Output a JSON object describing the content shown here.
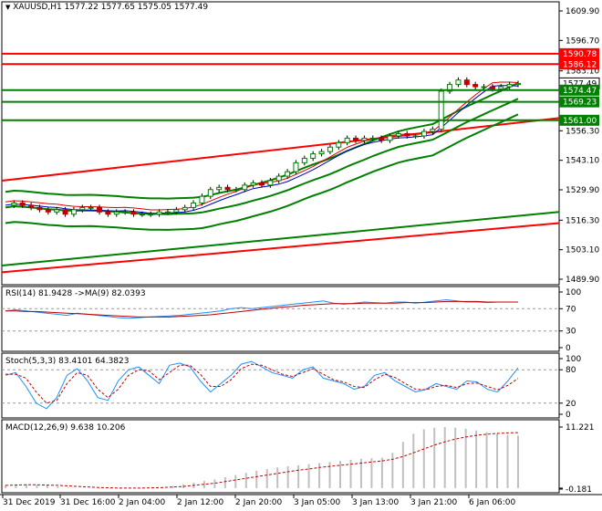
{
  "symbol": "XAUUSD,H1",
  "ohlc": "1577.22 1577.65 1575.05 1577.49",
  "colors": {
    "bull": "#008000",
    "bear": "#c00000",
    "ma_red": "#e00000",
    "ma_blue": "#0000c0",
    "green_band": "#008000",
    "level_red": "#ff0000",
    "level_green": "#008000",
    "rsi_line": "#1e90ff",
    "rsi_ma": "#c00000",
    "stoch_main": "#1e90ff",
    "stoch_signal": "#c00000",
    "macd_hist": "#c0c0c0",
    "macd_signal": "#c00000"
  },
  "chart_data": [
    {
      "type": "candlestick",
      "title": "XAUUSD,H1",
      "ohlc_text": "1577.22 1577.65 1575.05 1577.49",
      "ylim": [
        1489.9,
        1609.9
      ],
      "y_ticks": [
        "1609.90",
        "1596.70",
        "1583.10",
        "1569.90",
        "1556.30",
        "1543.10",
        "1529.90",
        "1516.30",
        "1503.10",
        "1489.90"
      ],
      "x_ticks": [
        "31 Dec 2019",
        "31 Dec 16:00",
        "2 Jan 04:00",
        "2 Jan 12:00",
        "2 Jan 20:00",
        "3 Jan 05:00",
        "3 Jan 13:00",
        "3 Jan 21:00",
        "6 Jan 06:00"
      ],
      "horizontal_levels": [
        {
          "value": 1590.78,
          "label": "1590.78",
          "color": "red"
        },
        {
          "value": 1586.12,
          "label": "1586.12",
          "color": "red"
        },
        {
          "value": 1577.49,
          "label": "1577.49",
          "color": "current"
        },
        {
          "value": 1574.47,
          "label": "1574.47",
          "color": "green"
        },
        {
          "value": 1569.23,
          "label": "1569.23",
          "color": "green"
        },
        {
          "value": 1561.0,
          "label": "1561.00",
          "color": "green"
        }
      ],
      "price_path": [
        1523,
        1524,
        1523,
        1522,
        1521,
        1520,
        1521,
        1519,
        1521,
        1522,
        1522,
        1520,
        1519,
        1520,
        1520,
        1519,
        1519,
        1519,
        1520,
        1520,
        1521,
        1522,
        1524,
        1527,
        1530,
        1531,
        1530,
        1530,
        1532,
        1533,
        1532,
        1534,
        1536,
        1538,
        1542,
        1544,
        1546,
        1547,
        1549,
        1551,
        1553,
        1552,
        1553,
        1553,
        1552,
        1554,
        1555,
        1554,
        1554,
        1556,
        1557,
        1574,
        1577,
        1579,
        1577,
        1576,
        1576,
        1575,
        1576,
        1577,
        1577.49
      ],
      "trend_channel_red": {
        "start": 1534,
        "end": 1562
      },
      "trend_lower_red": {
        "start": 1493,
        "end": 1515
      },
      "trend_lower_green": {
        "start": 1496,
        "end": 1520
      }
    },
    {
      "type": "line",
      "title": "RSI(14) 81.9428 ->MA(9) 82.0393",
      "ylim": [
        0,
        100
      ],
      "y_ticks": [
        "100",
        "70",
        "30",
        "0"
      ],
      "series": [
        {
          "name": "RSI(14)",
          "values": [
            66,
            68,
            66,
            64,
            62,
            60,
            58,
            62,
            60,
            58,
            56,
            54,
            53,
            54,
            55,
            56,
            57,
            58,
            60,
            62,
            64,
            66,
            70,
            72,
            70,
            72,
            74,
            76,
            78,
            80,
            82,
            84,
            80,
            78,
            80,
            82,
            81,
            80,
            82,
            82,
            80,
            82,
            84,
            86,
            84,
            82,
            82,
            81,
            82,
            82,
            81.9428
          ]
        },
        {
          "name": "MA(9)",
          "values": [
            66,
            66,
            65,
            65,
            64,
            63,
            62,
            61,
            60,
            59,
            58,
            57,
            56,
            55,
            55,
            55,
            55,
            56,
            57,
            58,
            59,
            61,
            63,
            65,
            67,
            69,
            71,
            73,
            74,
            76,
            77,
            78,
            79,
            79,
            79,
            80,
            80,
            80,
            80,
            81,
            81,
            81,
            82,
            83,
            83,
            83,
            83,
            82,
            82,
            82,
            82.0393
          ]
        }
      ]
    },
    {
      "type": "line",
      "title": "Stoch(5,3,3) 83.4101 64.3823",
      "ylim": [
        0,
        100
      ],
      "y_ticks": [
        "100",
        "80",
        "20",
        "0"
      ],
      "series": [
        {
          "name": "Main",
          "values": [
            70,
            75,
            50,
            20,
            10,
            30,
            70,
            82,
            60,
            30,
            25,
            60,
            80,
            85,
            70,
            55,
            88,
            92,
            85,
            60,
            40,
            55,
            70,
            90,
            95,
            85,
            75,
            70,
            65,
            80,
            85,
            65,
            60,
            55,
            45,
            50,
            70,
            75,
            60,
            50,
            40,
            45,
            55,
            50,
            45,
            60,
            58,
            45,
            40,
            60,
            83.4101
          ]
        },
        {
          "name": "Signal",
          "values": [
            72,
            72,
            65,
            40,
            20,
            25,
            55,
            75,
            70,
            45,
            30,
            45,
            70,
            80,
            78,
            62,
            75,
            88,
            88,
            72,
            50,
            50,
            62,
            82,
            90,
            88,
            80,
            72,
            68,
            75,
            82,
            72,
            62,
            58,
            50,
            48,
            62,
            72,
            66,
            55,
            45,
            44,
            50,
            52,
            48,
            55,
            56,
            50,
            44,
            52,
            64.3823
          ]
        }
      ]
    },
    {
      "type": "bar",
      "title": "MACD(12,26,9) 9.638 10.206",
      "y_ticks": [
        "11.221",
        "0",
        "-0.181"
      ],
      "series": [
        {
          "name": "MACD",
          "values": [
            0.5,
            0.6,
            0.7,
            0.6,
            0.5,
            0.3,
            0.1,
            0,
            0,
            -0.1,
            -0.1,
            -0.1,
            0,
            0,
            0.1,
            0.2,
            0.4,
            0.7,
            1.0,
            1.3,
            1.6,
            2.0,
            2.4,
            2.8,
            3.2,
            3.5,
            3.8,
            4.0,
            4.2,
            4.4,
            4.6,
            4.8,
            5.0,
            5.2,
            5.4,
            5.5,
            5.6,
            6.5,
            8.5,
            10.0,
            10.8,
            11.1,
            11.2,
            11.1,
            10.9,
            10.6,
            10.3,
            10.0,
            9.8,
            9.638
          ]
        },
        {
          "name": "Signal",
          "values": [
            0.5,
            0.55,
            0.6,
            0.6,
            0.55,
            0.5,
            0.4,
            0.3,
            0.2,
            0.1,
            0.05,
            0,
            0,
            0,
            0.05,
            0.1,
            0.2,
            0.3,
            0.5,
            0.7,
            0.9,
            1.2,
            1.5,
            1.8,
            2.1,
            2.4,
            2.7,
            3.0,
            3.3,
            3.5,
            3.8,
            4.0,
            4.2,
            4.4,
            4.6,
            4.8,
            5.0,
            5.3,
            5.8,
            6.5,
            7.2,
            7.9,
            8.5,
            9.0,
            9.4,
            9.7,
            9.9,
            10.05,
            10.15,
            10.206
          ]
        }
      ]
    }
  ]
}
